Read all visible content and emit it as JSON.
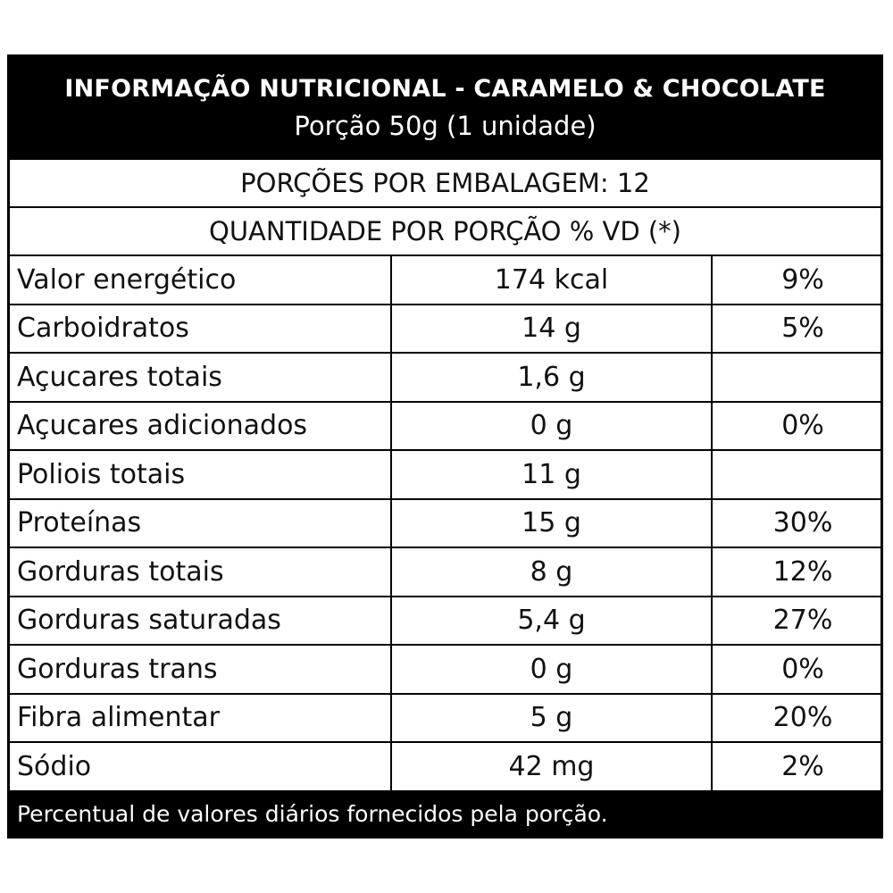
{
  "header": {
    "title": "INFORMAÇÃO NUTRICIONAL - CARAMELO & CHOCOLATE",
    "portion": "Porção 50g (1 unidade)"
  },
  "servings_per_package": "PORÇÕES POR EMBALAGEM: 12",
  "quantity_header": "QUANTIDADE POR PORÇÃO % VD (*)",
  "rows": [
    {
      "name": "Valor energético",
      "amount": "174 kcal",
      "dv": "9%"
    },
    {
      "name": "Carboidratos",
      "amount": "14 g",
      "dv": "5%"
    },
    {
      "name": "Açucares totais",
      "amount": "1,6 g",
      "dv": ""
    },
    {
      "name": "Açucares adicionados",
      "amount": "0 g",
      "dv": "0%"
    },
    {
      "name": "Poliois totais",
      "amount": "11 g",
      "dv": ""
    },
    {
      "name": "Proteínas",
      "amount": "15 g",
      "dv": "30%"
    },
    {
      "name": "Gorduras totais",
      "amount": "8 g",
      "dv": "12%"
    },
    {
      "name": "Gorduras saturadas",
      "amount": "5,4 g",
      "dv": "27%"
    },
    {
      "name": "Gorduras trans",
      "amount": "0 g",
      "dv": "0%"
    },
    {
      "name": "Fibra alimentar",
      "amount": "5 g",
      "dv": "20%"
    },
    {
      "name": "Sódio",
      "amount": "42 mg",
      "dv": "2%"
    }
  ],
  "footer": "Percentual de valores diários fornecidos pela porção."
}
